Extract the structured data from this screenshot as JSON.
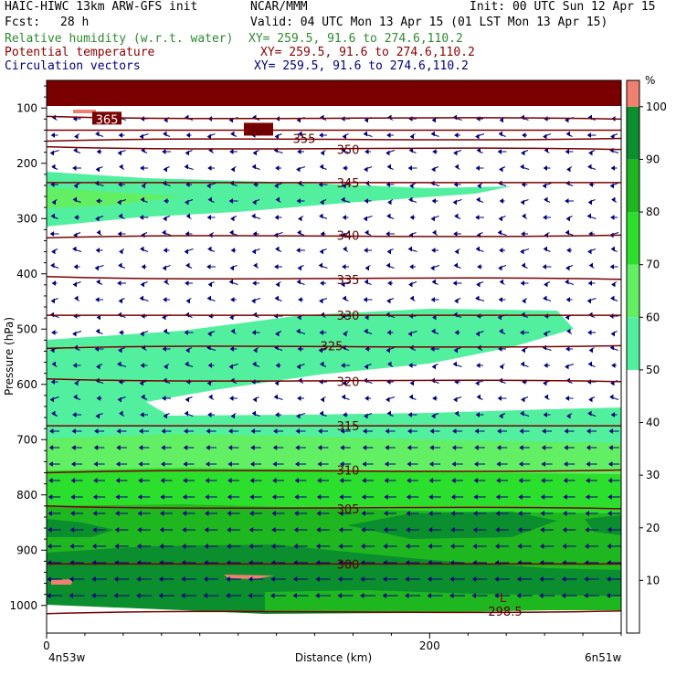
{
  "header": {
    "model": "HAIC-HIWC 13km ARW-GFS init",
    "center": "NCAR/MMM",
    "init": "Init: 00 UTC Sun 12 Apr 15",
    "fcst_label": "Fcst:",
    "fcst_value": "28 h",
    "valid": "Valid: 04 UTC Mon 13 Apr 15 (01 LST Mon 13 Apr 15)",
    "fields": [
      {
        "name": "Relative humidity (w.r.t. water)",
        "xy": "XY= 259.5, 91.6 to 274.6,110.2",
        "color": "#2e8b2e"
      },
      {
        "name": "Potential temperature",
        "xy": "XY= 259.5, 91.6 to 274.6,110.2",
        "color": "#8b0000"
      },
      {
        "name": "Circulation vectors",
        "xy": "XY= 259.5, 91.6 to 274.6,110.2",
        "color": "#00007f"
      }
    ]
  },
  "chart_data": {
    "type": "heatmap",
    "xlabel": "Distance (km)",
    "ylabel": "Pressure (hPa)",
    "x_ticks": [
      0,
      200
    ],
    "xlim": [
      0,
      300
    ],
    "ylim": [
      1050,
      50
    ],
    "y_ticks": [
      100,
      200,
      300,
      400,
      500,
      600,
      700,
      800,
      900,
      1000
    ],
    "x_left_label": "4n53w",
    "x_right_label": "6n51w",
    "colorbar": {
      "unit": "%",
      "levels": [
        10,
        20,
        30,
        40,
        50,
        60,
        70,
        80,
        90,
        100
      ],
      "colors": [
        "#ffffff",
        "#ffffff",
        "#ffffff",
        "#ffffff",
        "#ffffff",
        "#52ef9f",
        "#63ef63",
        "#2ddf2d",
        "#1fb71f",
        "#0b8e2e",
        "#f08070"
      ]
    },
    "theta_contours": [
      {
        "label": "365",
        "pressure": 120
      },
      {
        "label": "360",
        "pressure": 140
      },
      {
        "label": "355",
        "pressure": 155
      },
      {
        "label": "350",
        "pressure": 175
      },
      {
        "label": "345",
        "pressure": 235
      },
      {
        "label": "340",
        "pressure": 330
      },
      {
        "label": "335",
        "pressure": 410
      },
      {
        "label": "330",
        "pressure": 475
      },
      {
        "label": "325",
        "pressure": 530
      },
      {
        "label": "320",
        "pressure": 595
      },
      {
        "label": "315",
        "pressure": 675
      },
      {
        "label": "310",
        "pressure": 755
      },
      {
        "label": "305",
        "pressure": 825
      },
      {
        "label": "300",
        "pressure": 925
      },
      {
        "label": "298.5",
        "pressure": 1010
      }
    ],
    "annotations": [
      "L"
    ]
  }
}
